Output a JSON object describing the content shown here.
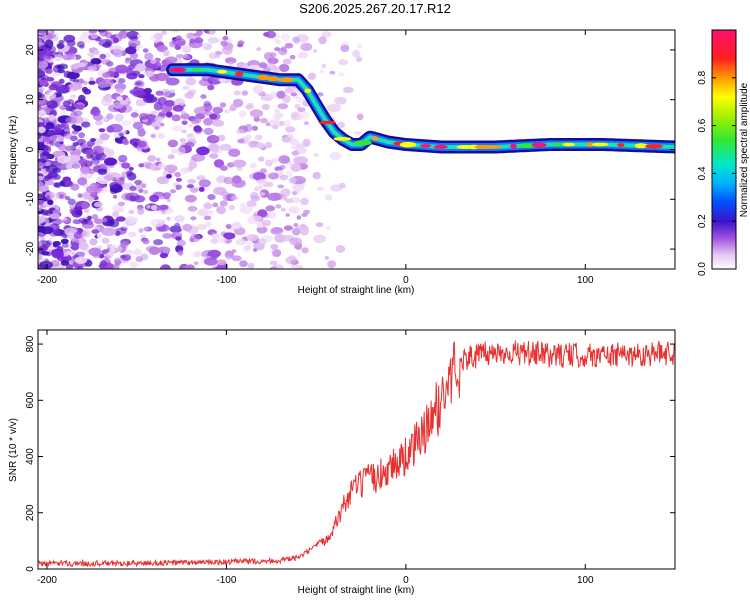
{
  "title": "S206.2025.267.20.17.R12",
  "chart_data": [
    {
      "type": "heatmap",
      "name": "spectrogram",
      "xlabel": "Height of straight line (km)",
      "ylabel": "Frequency (Hz)",
      "xlim": [
        -205,
        150
      ],
      "ylim": [
        -24,
        24
      ],
      "xticks": [
        -200,
        -100,
        0,
        100
      ],
      "yticks": [
        20,
        10,
        0,
        -10,
        -20
      ],
      "colorbar": {
        "label": "Normalized spectral amplitude",
        "range": [
          0.0,
          1.0
        ],
        "ticks": [
          0.0,
          0.2,
          0.4,
          0.6,
          0.8
        ]
      },
      "ridge": {
        "x": [
          -130,
          -120,
          -110,
          -100,
          -90,
          -80,
          -70,
          -60,
          -55,
          -50,
          -45,
          -40,
          -35,
          -30,
          -25,
          -20,
          -10,
          0,
          20,
          50,
          80,
          110,
          150
        ],
        "y": [
          16,
          16,
          16,
          15.5,
          15,
          14.5,
          14,
          14,
          12,
          9,
          6,
          3.5,
          2,
          1,
          1,
          2.5,
          1.5,
          1,
          0.5,
          0.5,
          1,
          1,
          0.5
        ]
      }
    },
    {
      "type": "line",
      "name": "snr",
      "xlabel": "Height of straight line (km)",
      "ylabel": "SNR (10 * v/v)",
      "xlim": [
        -205,
        150
      ],
      "ylim": [
        0,
        850
      ],
      "xticks": [
        -200,
        -100,
        0,
        100
      ],
      "yticks": [
        0,
        200,
        400,
        600,
        800
      ],
      "series": [
        {
          "name": "SNR",
          "color": "#e83030",
          "x": [
            -205,
            -150,
            -100,
            -70,
            -60,
            -55,
            -50,
            -45,
            -40,
            -35,
            -30,
            -25,
            -20,
            -15,
            -10,
            -5,
            0,
            5,
            10,
            15,
            20,
            25,
            30,
            40,
            50,
            60,
            80,
            100,
            120,
            150
          ],
          "y": [
            20,
            20,
            25,
            30,
            40,
            60,
            80,
            100,
            150,
            220,
            280,
            300,
            320,
            330,
            360,
            380,
            400,
            440,
            480,
            540,
            600,
            680,
            740,
            760,
            770,
            770,
            760,
            760,
            760,
            770
          ]
        }
      ]
    }
  ]
}
